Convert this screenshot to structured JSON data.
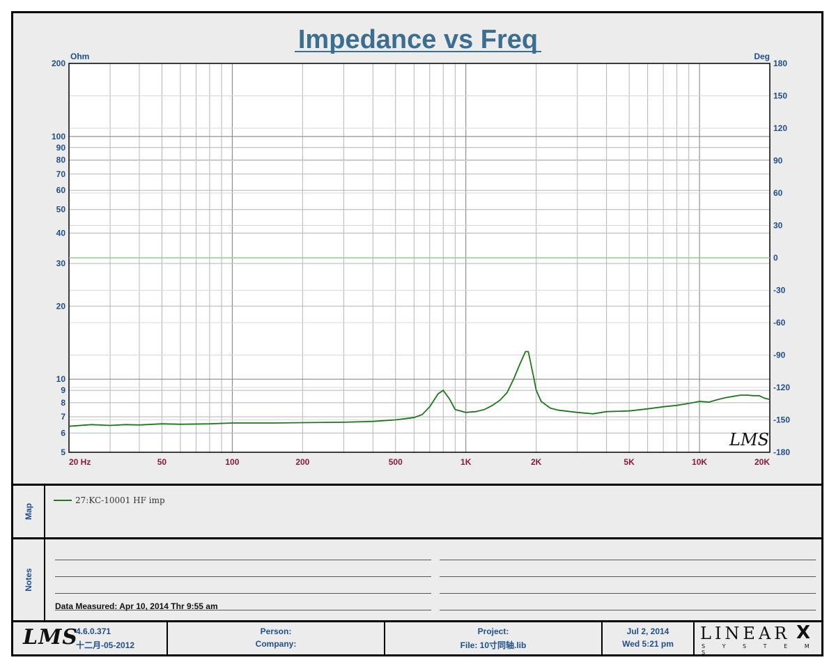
{
  "chart_data": {
    "type": "line",
    "title": "Impedance vs Freq",
    "x_scale": "log",
    "xlim": [
      20,
      20000
    ],
    "x_ticks": [
      20,
      50,
      100,
      200,
      500,
      1000,
      2000,
      5000,
      10000,
      20000
    ],
    "x_tick_labels": [
      "20  Hz",
      "50",
      "100",
      "200",
      "500",
      "1K",
      "2K",
      "5K",
      "10K",
      "20K"
    ],
    "y_scale": "log",
    "ylim": [
      5,
      200
    ],
    "ylabel": "Ohm",
    "y_ticks": [
      5,
      6,
      7,
      8,
      9,
      10,
      20,
      30,
      40,
      50,
      60,
      70,
      80,
      90,
      100,
      200
    ],
    "y_tick_labels": [
      "5",
      "6",
      "7",
      "8",
      "9",
      "10",
      "20",
      "30",
      "40",
      "50",
      "60",
      "70",
      "80",
      "90",
      "100",
      "200"
    ],
    "y2label": "Deg",
    "y2lim": [
      -180,
      180
    ],
    "y2_ticks": [
      180,
      150,
      120,
      90,
      60,
      30,
      0,
      -30,
      -60,
      -90,
      -120,
      -150,
      -180
    ],
    "grid": true,
    "series": [
      {
        "name": "27:KC-10001 HF imp",
        "color": "#1a7a1a",
        "x": [
          20,
          25,
          30,
          35,
          40,
          50,
          60,
          80,
          100,
          150,
          200,
          300,
          400,
          500,
          600,
          650,
          700,
          760,
          800,
          850,
          900,
          1000,
          1100,
          1200,
          1300,
          1400,
          1500,
          1600,
          1700,
          1800,
          1850,
          1900,
          1950,
          2000,
          2100,
          2300,
          2500,
          3000,
          3500,
          4000,
          5000,
          6000,
          7000,
          8000,
          9000,
          10000,
          11000,
          12000,
          13000,
          14000,
          15000,
          16000,
          17000,
          18000,
          19000,
          20000
        ],
        "y": [
          6.4,
          6.5,
          6.45,
          6.5,
          6.48,
          6.55,
          6.52,
          6.55,
          6.6,
          6.6,
          6.62,
          6.65,
          6.7,
          6.8,
          6.95,
          7.15,
          7.7,
          8.7,
          9.0,
          8.3,
          7.5,
          7.3,
          7.35,
          7.5,
          7.8,
          8.2,
          8.8,
          10.0,
          11.5,
          13.0,
          13.0,
          11.5,
          10.2,
          9.0,
          8.1,
          7.6,
          7.45,
          7.3,
          7.2,
          7.35,
          7.4,
          7.55,
          7.7,
          7.8,
          7.95,
          8.1,
          8.05,
          8.25,
          8.4,
          8.5,
          8.6,
          8.6,
          8.55,
          8.55,
          8.35,
          8.25
        ]
      },
      {
        "name": "phase",
        "color": "#8fd18f",
        "x": [
          20,
          20000
        ],
        "y2": [
          0,
          0
        ]
      }
    ]
  },
  "map": {
    "label": "Map",
    "legend_text": "27:KC-10001 HF imp"
  },
  "notes": {
    "label": "Notes",
    "data_measured": "Data Measured: Apr 10, 2014  Thr  9:55 am"
  },
  "footer": {
    "logo_text": "LMS",
    "version": "4.6.0.371",
    "build_date": "十二月-05-2012",
    "person_label": "Person:",
    "company_label": "Company:",
    "project_label": "Project:",
    "file_label": "File:  10寸同轴.lib",
    "date": "Jul  2, 2014",
    "time": "Wed  5:21 pm",
    "brand": "LINEAR",
    "brand_x": "X",
    "brand_sub": "S Y S T E M S"
  },
  "watermark": "LMS",
  "colors": {
    "title": "#3c6e8f",
    "axis_labels": "#1f4e8c",
    "x_tick_labels": "#8b1a3a",
    "impedance_curve": "#1a7a1a",
    "phase_curve": "#8fd18f"
  }
}
